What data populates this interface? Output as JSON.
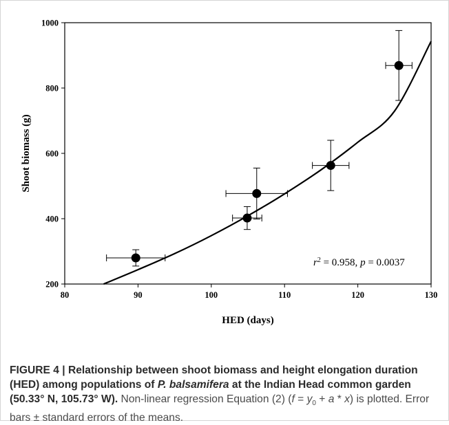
{
  "chart_data": {
    "type": "scatter",
    "xlabel": "HED (days)",
    "ylabel": "Shoot biomass (g)",
    "xlim": [
      80,
      130
    ],
    "ylim": [
      200,
      1000
    ],
    "xticks": [
      80,
      90,
      100,
      110,
      120,
      130
    ],
    "yticks": [
      200,
      400,
      600,
      800,
      1000
    ],
    "points": [
      {
        "x": 89.7,
        "y": 280,
        "xerr": 4.0,
        "yerr": 25
      },
      {
        "x": 104.9,
        "y": 402,
        "xerr": 2.0,
        "yerr": 35
      },
      {
        "x": 106.2,
        "y": 477,
        "xerr": 4.2,
        "yerr": 78
      },
      {
        "x": 116.3,
        "y": 563,
        "xerr": 2.5,
        "yerr": 77
      },
      {
        "x": 125.6,
        "y": 869,
        "xerr": 1.8,
        "yerr": 107
      }
    ],
    "fit": {
      "x": [
        85.3,
        90,
        95,
        100,
        105,
        110,
        115,
        120,
        125,
        130
      ],
      "y": [
        200,
        244,
        293,
        348,
        409,
        476,
        550,
        634,
        729,
        943
      ]
    },
    "annotation": {
      "r": "r",
      "sup": "2",
      "rest": " = 0.958, ",
      "p": "p",
      "rest2": " = 0.0037"
    },
    "grid": false
  },
  "caption": {
    "bold_1": "FIGURE 4 | Relationship between shoot biomass and height elongation duration (HED) among populations of ",
    "bold_italic": "P. balsamifera",
    "bold_2": " at the Indian Head common garden (50.33° N, 105.73° W).",
    "plain_1": " Non-linear regression Equation (2) (",
    "eq_f": "f",
    "eq_eq": " = ",
    "eq_y": "y",
    "eq_sub": "0",
    "eq_plus": " + ",
    "eq_a": "a",
    "eq_star": " * ",
    "eq_x": "x",
    "plain_2": ") is plotted. Error bars ± standard errors of the means."
  }
}
